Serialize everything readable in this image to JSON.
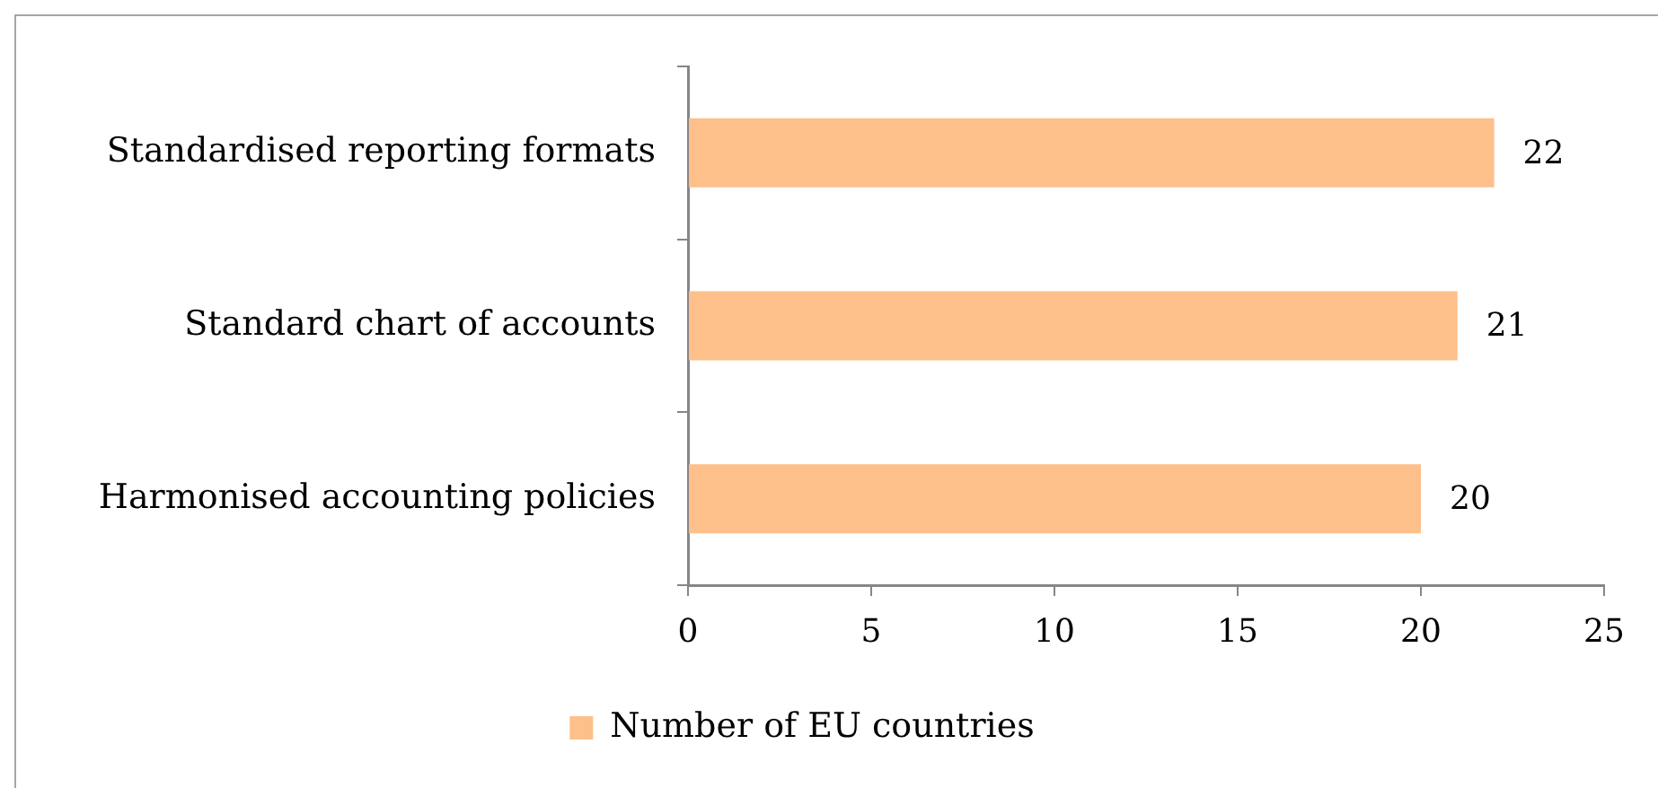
{
  "chart_data": {
    "type": "bar",
    "orientation": "horizontal",
    "categories": [
      "Standardised reporting formats",
      "Standard chart of accounts",
      "Harmonised accounting policies"
    ],
    "series": [
      {
        "name": "Number of EU countries",
        "color": "#fdc08b",
        "values": [
          22,
          21,
          20
        ]
      }
    ],
    "xlim": [
      0,
      25
    ],
    "xticks": [
      0,
      5,
      10,
      15,
      20,
      25
    ],
    "grid": false,
    "legend": "bottom",
    "data_labels": true
  }
}
